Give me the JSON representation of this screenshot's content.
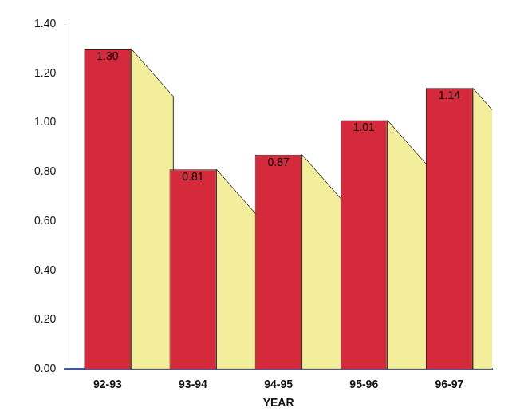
{
  "chart_data": {
    "type": "bar",
    "x_label": "YEAR",
    "categories": [
      "92-93",
      "93-94",
      "94-95",
      "95-96",
      "96-97"
    ],
    "values": [
      1.3,
      0.81,
      0.87,
      1.01,
      1.14
    ],
    "value_labels": [
      "1.30",
      "0.81",
      "0.87",
      "1.01",
      "1.14"
    ],
    "color": "#d42a3c",
    "ylim": [
      0,
      1.4
    ],
    "yticks": [
      {
        "value": 0,
        "label": "0.00"
      },
      {
        "value": 0.2,
        "label": "0.20"
      },
      {
        "value": 0.4,
        "label": "0.40"
      },
      {
        "value": 0.6,
        "label": "0.60"
      },
      {
        "value": 0.8,
        "label": "0.80"
      },
      {
        "value": 1.0,
        "label": "1.00"
      },
      {
        "value": 1.2,
        "label": "1.20"
      },
      {
        "value": 1.4,
        "label": "1.40"
      }
    ],
    "grid": false,
    "data_labels": true
  }
}
